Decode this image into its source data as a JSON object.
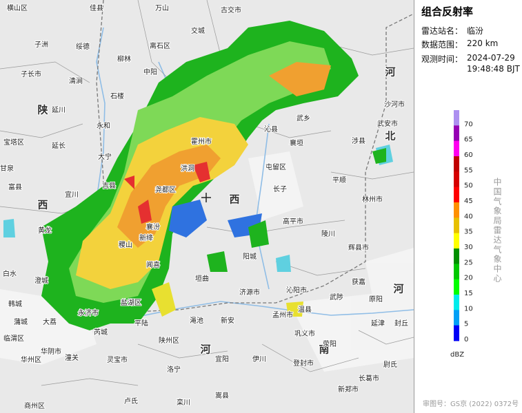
{
  "panel": {
    "title": "组合反射率",
    "station": {
      "label": "雷达站名：",
      "value": "临汾"
    },
    "range": {
      "label": "数据范围：",
      "value": "220 km"
    },
    "time": {
      "label": "观测时间：",
      "date": "2024-07-29",
      "time": "19:48:48 BJT"
    },
    "legend": {
      "levels": [
        70,
        65,
        60,
        55,
        50,
        45,
        40,
        35,
        30,
        25,
        20,
        15,
        10,
        5,
        0
      ],
      "unit": "dBZ"
    },
    "credit": "中国气象局雷达气象中心",
    "approval": "审图号：GS京 (2022) 0372号"
  },
  "map": {
    "provinces": [
      "陕",
      "西",
      "西",
      "河",
      "北",
      "河",
      "南",
      "河"
    ],
    "places": [
      "横山区",
      "佳县",
      "万山",
      "古交市",
      "交城",
      "子洲",
      "绥德",
      "离石区",
      "柳林",
      "中阳",
      "子长市",
      "清涧",
      "石楼",
      "延川",
      "永和",
      "宝塔区",
      "延长",
      "大宁",
      "宜川",
      "吉县",
      "甘泉",
      "富县",
      "黄龙",
      "白水",
      "澄城",
      "韩城",
      "蒲城",
      "大荔",
      "临渭区",
      "华州区",
      "华阴市",
      "潼关",
      "霍州市",
      "洪洞",
      "尧都区",
      "襄汾",
      "新绛",
      "稷山",
      "闻喜",
      "盐湖区",
      "永济市",
      "芮城",
      "平陆",
      "陕州区",
      "灵宝市",
      "垣曲",
      "沁县",
      "武乡",
      "襄垣",
      "屯留区",
      "长子",
      "平顺",
      "高平市",
      "陵川",
      "阳城",
      "沁阳市",
      "济源市",
      "温县",
      "孟州市",
      "武陟",
      "获嘉",
      "辉县市",
      "林州市",
      "涉县",
      "武安市",
      "沙河市",
      "原阳",
      "延津",
      "封丘",
      "巩义市",
      "荥阳",
      "新安",
      "渑池",
      "宜阳",
      "伊川",
      "登封市",
      "新郑市",
      "长葛市",
      "尉氏",
      "嵩县",
      "栾川",
      "卢氏",
      "洛宁",
      "商州区"
    ]
  }
}
